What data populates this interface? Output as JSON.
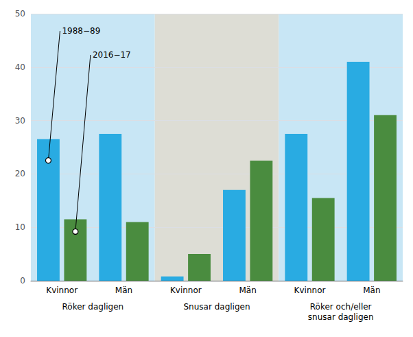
{
  "chart_data": {
    "type": "bar",
    "categories": [
      "Kvinnor",
      "Män",
      "Kvinnor",
      "Män",
      "Kvinnor",
      "Män"
    ],
    "sections": [
      {
        "label": "Röker dagligen",
        "color": "#C8E6F5"
      },
      {
        "label": "Snusar dagligen",
        "color": "#DDDDD5"
      },
      {
        "label": "Röker och/eller\nsnusar dagligen",
        "color": "#C8E6F5"
      }
    ],
    "series": [
      {
        "name": "1988−89",
        "color": "#29ABE2",
        "values": [
          26.5,
          27.5,
          0.8,
          17.0,
          27.5,
          41.0
        ]
      },
      {
        "name": "2016−17",
        "color": "#4A8C3F",
        "values": [
          11.5,
          11.0,
          5.0,
          22.5,
          15.5,
          31.0
        ]
      }
    ],
    "ylim": [
      0,
      50
    ],
    "yticks": [
      0,
      10,
      20,
      30,
      40,
      50
    ],
    "grid": true
  }
}
